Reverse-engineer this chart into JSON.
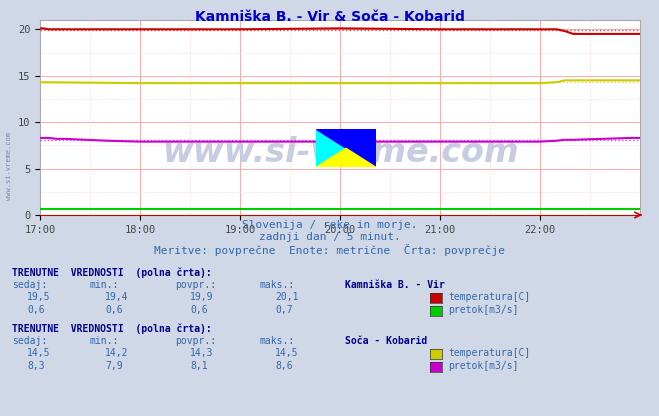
{
  "title": "Kamniška B. - Vir & Soča - Kobarid",
  "title_color": "#0000cc",
  "bg_color": "#d0d8e8",
  "plot_bg_color": "#ffffff",
  "grid_color_major": "#ffaaaa",
  "grid_color_minor": "#ffdddd",
  "xlabel_ticks": [
    "17:00",
    "18:00",
    "19:00",
    "20:00",
    "21:00",
    "22:00"
  ],
  "xlim": [
    0,
    360
  ],
  "ylim": [
    0,
    21
  ],
  "yticks": [
    0,
    5,
    10,
    15,
    20
  ],
  "watermark": "www.si-vreme.com",
  "watermark_color": "#c8cce0",
  "subtitle1": "Slovenija / reke in morje.",
  "subtitle2": "zadnji dan / 5 minut.",
  "subtitle3": "Meritve: povprečne  Enote: metrične  Črta: povprečje",
  "subtitle_color": "#3366aa",
  "sidewatermark": "www.si-vreme.com",
  "kamniska_temp_color": "#cc0000",
  "kamniska_pretok_color": "#00cc00",
  "soca_temp_color": "#cccc00",
  "soca_pretok_color": "#cc00cc",
  "info_color": "#000088",
  "label_color": "#3366aa",
  "station1_name": "Kamniška B. - Vir",
  "station2_name": "Soča - Kobarid",
  "s1_vals_temp": [
    "19,5",
    "19,4",
    "19,9",
    "20,1"
  ],
  "s1_vals_pret": [
    "0,6",
    "0,6",
    "0,6",
    "0,7"
  ],
  "s2_vals_temp": [
    "14,5",
    "14,2",
    "14,3",
    "14,5"
  ],
  "s2_vals_pret": [
    "8,3",
    "7,9",
    "8,1",
    "8,6"
  ],
  "col_headers": [
    "sedaj:",
    "min.:",
    "povpr.:",
    "maks.:"
  ]
}
